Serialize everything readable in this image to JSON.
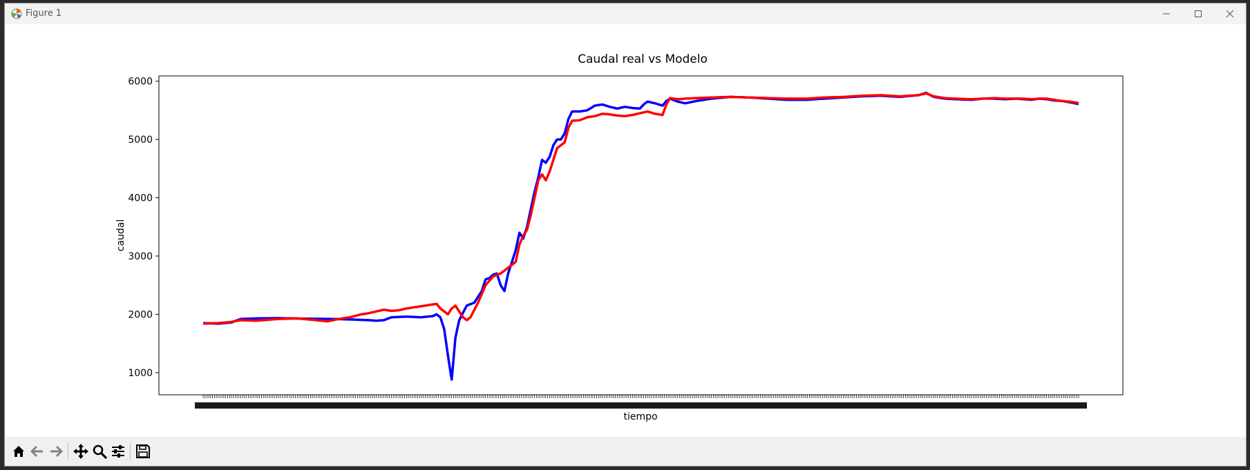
{
  "window": {
    "title": "Figure 1",
    "app_icon": "matplotlib-logo-icon",
    "controls": [
      "minimize-icon",
      "maximize-icon",
      "close-icon"
    ]
  },
  "toolbar": {
    "buttons": [
      {
        "name": "home-button",
        "icon": "home-icon",
        "enabled": true
      },
      {
        "name": "back-button",
        "icon": "arrow-left-icon",
        "enabled": false
      },
      {
        "name": "forward-button",
        "icon": "arrow-right-icon",
        "enabled": false
      },
      {
        "name": "pan-button",
        "icon": "move-icon",
        "enabled": true
      },
      {
        "name": "zoom-button",
        "icon": "magnifier-icon",
        "enabled": true
      },
      {
        "name": "configure-subplots-button",
        "icon": "sliders-icon",
        "enabled": true
      },
      {
        "name": "save-button",
        "icon": "floppy-disk-icon",
        "enabled": true
      }
    ]
  },
  "chart_data": {
    "type": "line",
    "title": "Caudal real vs Modelo",
    "xlabel": "tiempo",
    "ylabel": "caudal",
    "ylim": [
      620,
      6090
    ],
    "yticks": [
      1000,
      2000,
      3000,
      4000,
      5000,
      6000
    ],
    "grid": false,
    "legend": "none",
    "x_tick_labels_overlapping": true,
    "n_points": 466,
    "colors": {
      "real": "#0000ff",
      "model": "#ff0000"
    },
    "series": [
      {
        "color": "#0000ff",
        "knots": [
          [
            0,
            1850
          ],
          [
            8,
            1840
          ],
          [
            15,
            1860
          ],
          [
            20,
            1920
          ],
          [
            28,
            1930
          ],
          [
            40,
            1935
          ],
          [
            55,
            1925
          ],
          [
            70,
            1920
          ],
          [
            80,
            1910
          ],
          [
            88,
            1900
          ],
          [
            92,
            1890
          ],
          [
            96,
            1900
          ],
          [
            100,
            1950
          ],
          [
            108,
            1960
          ],
          [
            116,
            1950
          ],
          [
            122,
            1970
          ],
          [
            124,
            2000
          ],
          [
            126,
            1950
          ],
          [
            128,
            1750
          ],
          [
            130,
            1300
          ],
          [
            132,
            880
          ],
          [
            134,
            1600
          ],
          [
            136,
            1900
          ],
          [
            140,
            2150
          ],
          [
            144,
            2200
          ],
          [
            146,
            2300
          ],
          [
            148,
            2400
          ],
          [
            150,
            2600
          ],
          [
            152,
            2620
          ],
          [
            154,
            2680
          ],
          [
            156,
            2700
          ],
          [
            158,
            2500
          ],
          [
            160,
            2400
          ],
          [
            162,
            2700
          ],
          [
            164,
            2900
          ],
          [
            166,
            3100
          ],
          [
            168,
            3400
          ],
          [
            170,
            3300
          ],
          [
            172,
            3500
          ],
          [
            174,
            3800
          ],
          [
            176,
            4100
          ],
          [
            178,
            4350
          ],
          [
            180,
            4650
          ],
          [
            182,
            4600
          ],
          [
            184,
            4700
          ],
          [
            186,
            4900
          ],
          [
            188,
            5000
          ],
          [
            190,
            5000
          ],
          [
            192,
            5100
          ],
          [
            194,
            5350
          ],
          [
            196,
            5480
          ],
          [
            200,
            5480
          ],
          [
            204,
            5500
          ],
          [
            208,
            5580
          ],
          [
            212,
            5600
          ],
          [
            216,
            5560
          ],
          [
            220,
            5530
          ],
          [
            224,
            5560
          ],
          [
            228,
            5540
          ],
          [
            232,
            5530
          ],
          [
            234,
            5600
          ],
          [
            236,
            5650
          ],
          [
            240,
            5620
          ],
          [
            244,
            5580
          ],
          [
            246,
            5660
          ],
          [
            248,
            5700
          ],
          [
            252,
            5650
          ],
          [
            256,
            5620
          ],
          [
            262,
            5660
          ],
          [
            270,
            5700
          ],
          [
            280,
            5730
          ],
          [
            290,
            5720
          ],
          [
            300,
            5700
          ],
          [
            310,
            5680
          ],
          [
            320,
            5680
          ],
          [
            330,
            5700
          ],
          [
            340,
            5720
          ],
          [
            350,
            5740
          ],
          [
            360,
            5750
          ],
          [
            370,
            5730
          ],
          [
            380,
            5760
          ],
          [
            384,
            5800
          ],
          [
            388,
            5730
          ],
          [
            394,
            5700
          ],
          [
            400,
            5690
          ],
          [
            408,
            5680
          ],
          [
            414,
            5700
          ],
          [
            420,
            5700
          ],
          [
            426,
            5690
          ],
          [
            432,
            5700
          ],
          [
            436,
            5690
          ],
          [
            440,
            5680
          ],
          [
            444,
            5700
          ],
          [
            448,
            5690
          ],
          [
            452,
            5670
          ],
          [
            456,
            5660
          ],
          [
            460,
            5640
          ],
          [
            466,
            5600
          ]
        ]
      },
      {
        "color": "#ff0000",
        "knots": [
          [
            0,
            1840
          ],
          [
            8,
            1850
          ],
          [
            15,
            1870
          ],
          [
            20,
            1900
          ],
          [
            28,
            1890
          ],
          [
            40,
            1920
          ],
          [
            50,
            1930
          ],
          [
            60,
            1900
          ],
          [
            66,
            1880
          ],
          [
            72,
            1920
          ],
          [
            78,
            1950
          ],
          [
            84,
            2000
          ],
          [
            88,
            2020
          ],
          [
            92,
            2050
          ],
          [
            96,
            2080
          ],
          [
            100,
            2060
          ],
          [
            104,
            2070
          ],
          [
            108,
            2100
          ],
          [
            112,
            2120
          ],
          [
            116,
            2140
          ],
          [
            120,
            2160
          ],
          [
            124,
            2180
          ],
          [
            126,
            2100
          ],
          [
            128,
            2050
          ],
          [
            130,
            2000
          ],
          [
            132,
            2100
          ],
          [
            134,
            2150
          ],
          [
            136,
            2050
          ],
          [
            138,
            1950
          ],
          [
            140,
            1900
          ],
          [
            142,
            1950
          ],
          [
            146,
            2200
          ],
          [
            150,
            2500
          ],
          [
            154,
            2650
          ],
          [
            158,
            2700
          ],
          [
            160,
            2750
          ],
          [
            162,
            2800
          ],
          [
            164,
            2850
          ],
          [
            166,
            2900
          ],
          [
            168,
            3200
          ],
          [
            170,
            3350
          ],
          [
            172,
            3450
          ],
          [
            174,
            3700
          ],
          [
            176,
            4000
          ],
          [
            178,
            4300
          ],
          [
            180,
            4400
          ],
          [
            182,
            4300
          ],
          [
            184,
            4450
          ],
          [
            186,
            4650
          ],
          [
            188,
            4850
          ],
          [
            190,
            4900
          ],
          [
            192,
            4950
          ],
          [
            194,
            5200
          ],
          [
            196,
            5320
          ],
          [
            200,
            5330
          ],
          [
            204,
            5380
          ],
          [
            208,
            5400
          ],
          [
            212,
            5440
          ],
          [
            216,
            5430
          ],
          [
            220,
            5410
          ],
          [
            224,
            5400
          ],
          [
            228,
            5420
          ],
          [
            232,
            5450
          ],
          [
            236,
            5480
          ],
          [
            240,
            5440
          ],
          [
            244,
            5420
          ],
          [
            246,
            5600
          ],
          [
            248,
            5710
          ],
          [
            252,
            5690
          ],
          [
            256,
            5700
          ],
          [
            262,
            5710
          ],
          [
            270,
            5720
          ],
          [
            280,
            5730
          ],
          [
            290,
            5720
          ],
          [
            300,
            5710
          ],
          [
            310,
            5700
          ],
          [
            320,
            5700
          ],
          [
            330,
            5720
          ],
          [
            340,
            5730
          ],
          [
            350,
            5750
          ],
          [
            360,
            5760
          ],
          [
            370,
            5740
          ],
          [
            380,
            5760
          ],
          [
            384,
            5790
          ],
          [
            388,
            5740
          ],
          [
            394,
            5710
          ],
          [
            400,
            5700
          ],
          [
            408,
            5690
          ],
          [
            414,
            5700
          ],
          [
            420,
            5710
          ],
          [
            426,
            5700
          ],
          [
            432,
            5700
          ],
          [
            436,
            5700
          ],
          [
            440,
            5690
          ],
          [
            444,
            5700
          ],
          [
            448,
            5700
          ],
          [
            452,
            5680
          ],
          [
            456,
            5660
          ],
          [
            460,
            5650
          ],
          [
            466,
            5620
          ]
        ]
      }
    ]
  }
}
